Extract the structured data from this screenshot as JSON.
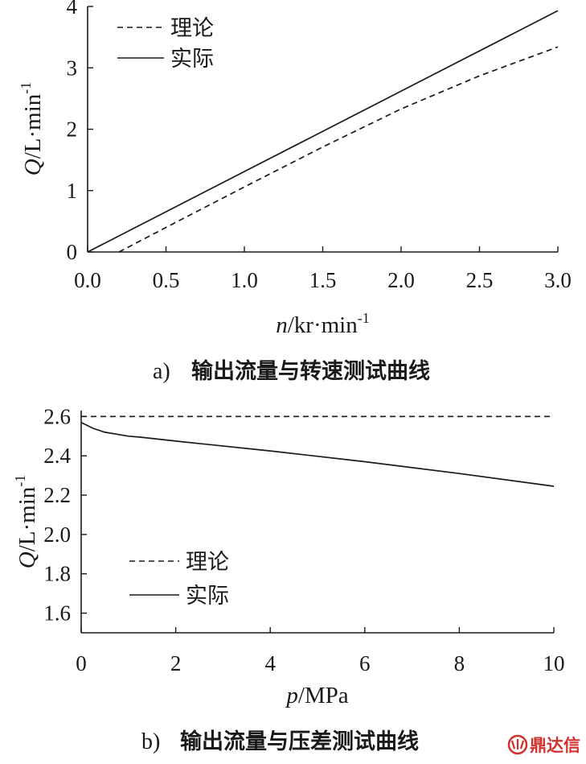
{
  "chart_data": [
    {
      "type": "line",
      "caption_tag": "a)",
      "caption": "输出流量与转速测试曲线",
      "xlabel_var": "n",
      "xlabel_unit": "/kr·min",
      "xlabel_sup": "-1",
      "ylabel_var": "Q",
      "ylabel_unit": "/L·min",
      "ylabel_sup": "-1",
      "xlim": [
        0,
        3
      ],
      "ylim": [
        0,
        4
      ],
      "xticks": [
        0,
        0.5,
        1,
        1.5,
        2,
        2.5,
        3
      ],
      "xtick_labels": [
        "0.0",
        "0.5",
        "1.0",
        "1.5",
        "2.0",
        "2.5",
        "3.0"
      ],
      "yticks": [
        0,
        1,
        2,
        3,
        4
      ],
      "ytick_labels": [
        "0",
        "1",
        "2",
        "3",
        "4"
      ],
      "legend_position": "top-left",
      "series": [
        {
          "name": "理论",
          "style": "dashed",
          "x": [
            0.2,
            0.5,
            1.0,
            1.5,
            2.0,
            2.5,
            3.0
          ],
          "y": [
            0,
            0.4,
            1.06,
            1.71,
            2.33,
            2.87,
            3.34
          ]
        },
        {
          "name": "实际",
          "style": "solid",
          "x": [
            0,
            3.0
          ],
          "y": [
            0,
            3.93
          ]
        }
      ]
    },
    {
      "type": "line",
      "caption_tag": "b)",
      "caption": "输出流量与压差测试曲线",
      "xlabel_var": "p",
      "xlabel_unit": "/MPa",
      "xlabel_sup": "",
      "ylabel_var": "Q",
      "ylabel_unit": "/L·min",
      "ylabel_sup": "-1",
      "xlim": [
        0,
        10
      ],
      "ylim": [
        1.5,
        2.63
      ],
      "xticks": [
        0,
        2,
        4,
        6,
        8,
        10
      ],
      "xtick_labels": [
        "0",
        "2",
        "4",
        "6",
        "8",
        "10"
      ],
      "yticks": [
        1.6,
        1.8,
        2.0,
        2.2,
        2.4,
        2.6
      ],
      "ytick_labels": [
        "1.6",
        "1.8",
        "2.0",
        "2.2",
        "2.4",
        "2.6"
      ],
      "legend_position": "bottom-left",
      "series": [
        {
          "name": "理论",
          "style": "dashed",
          "x": [
            0,
            10
          ],
          "y": [
            2.6,
            2.6
          ]
        },
        {
          "name": "实际",
          "style": "solid",
          "x": [
            0,
            0.25,
            0.5,
            0.75,
            1.0,
            1.25,
            2,
            4,
            6,
            8,
            10
          ],
          "y": [
            2.57,
            2.54,
            2.52,
            2.51,
            2.5,
            2.495,
            2.475,
            2.425,
            2.37,
            2.31,
            2.245
          ]
        }
      ]
    }
  ],
  "watermark": {
    "text": "鼎达信",
    "color": "#d0312d"
  }
}
